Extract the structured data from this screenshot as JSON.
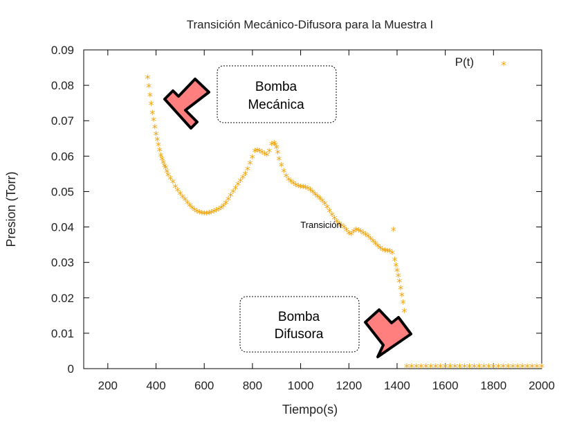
{
  "chart_data": {
    "type": "scatter",
    "title": "Transición Mecánico-Difusora para la Muestra I",
    "xlabel": "Tiempo(s)",
    "ylabel": "Presion (Torr)",
    "xlim": [
      100,
      2000
    ],
    "ylim": [
      0,
      0.09
    ],
    "x_ticks": [
      200,
      400,
      600,
      800,
      1000,
      1200,
      1400,
      1600,
      1800,
      2000
    ],
    "y_ticks": [
      "0",
      "0.01",
      "0.02",
      "0.03",
      "0.04",
      "0.05",
      "0.06",
      "0.07",
      "0.08",
      "0.09"
    ],
    "grid": false,
    "legend": {
      "position": "top-right",
      "entries": [
        {
          "label": "P(t)",
          "marker": "*",
          "color": "#f0a30a"
        }
      ]
    },
    "marker_color": "#f0a30a",
    "series": [
      {
        "name": "P(t)",
        "points": [
          [
            365,
            0.082
          ],
          [
            370,
            0.0795
          ],
          [
            375,
            0.077
          ],
          [
            380,
            0.0745
          ],
          [
            385,
            0.072
          ],
          [
            390,
            0.07
          ],
          [
            395,
            0.068
          ],
          [
            400,
            0.066
          ],
          [
            405,
            0.0645
          ],
          [
            410,
            0.063
          ],
          [
            415,
            0.0615
          ],
          [
            420,
            0.06
          ],
          [
            425,
            0.059
          ],
          [
            430,
            0.058
          ],
          [
            435,
            0.057
          ],
          [
            440,
            0.0565
          ],
          [
            445,
            0.0555
          ],
          [
            450,
            0.0545
          ],
          [
            460,
            0.0535
          ],
          [
            470,
            0.0525
          ],
          [
            480,
            0.0512
          ],
          [
            490,
            0.0502
          ],
          [
            500,
            0.0492
          ],
          [
            510,
            0.0483
          ],
          [
            520,
            0.0475
          ],
          [
            530,
            0.0467
          ],
          [
            540,
            0.0459
          ],
          [
            550,
            0.0452
          ],
          [
            560,
            0.0446
          ],
          [
            570,
            0.0442
          ],
          [
            580,
            0.0439
          ],
          [
            590,
            0.0437
          ],
          [
            600,
            0.0436
          ],
          [
            610,
            0.0436
          ],
          [
            620,
            0.0437
          ],
          [
            630,
            0.0439
          ],
          [
            640,
            0.0442
          ],
          [
            650,
            0.0445
          ],
          [
            660,
            0.0448
          ],
          [
            670,
            0.0452
          ],
          [
            680,
            0.0458
          ],
          [
            690,
            0.0466
          ],
          [
            700,
            0.0476
          ],
          [
            710,
            0.0487
          ],
          [
            720,
            0.0498
          ],
          [
            730,
            0.0508
          ],
          [
            740,
            0.0518
          ],
          [
            750,
            0.0528
          ],
          [
            760,
            0.0538
          ],
          [
            770,
            0.0548
          ],
          [
            780,
            0.0562
          ],
          [
            790,
            0.0578
          ],
          [
            800,
            0.0595
          ],
          [
            810,
            0.0612
          ],
          [
            820,
            0.0614
          ],
          [
            830,
            0.0612
          ],
          [
            840,
            0.0608
          ],
          [
            850,
            0.0605
          ],
          [
            860,
            0.0602
          ],
          [
            870,
            0.0612
          ],
          [
            880,
            0.0632
          ],
          [
            890,
            0.0635
          ],
          [
            895,
            0.063
          ],
          [
            900,
            0.0622
          ],
          [
            905,
            0.0608
          ],
          [
            910,
            0.059
          ],
          [
            920,
            0.0572
          ],
          [
            930,
            0.0556
          ],
          [
            940,
            0.0542
          ],
          [
            950,
            0.0532
          ],
          [
            960,
            0.0526
          ],
          [
            970,
            0.0521
          ],
          [
            980,
            0.0517
          ],
          [
            990,
            0.0514
          ],
          [
            1000,
            0.0512
          ],
          [
            1010,
            0.0511
          ],
          [
            1020,
            0.051
          ],
          [
            1030,
            0.0507
          ],
          [
            1040,
            0.0503
          ],
          [
            1050,
            0.0497
          ],
          [
            1060,
            0.049
          ],
          [
            1070,
            0.0484
          ],
          [
            1080,
            0.0478
          ],
          [
            1090,
            0.0472
          ],
          [
            1100,
            0.0464
          ],
          [
            1110,
            0.0454
          ],
          [
            1120,
            0.0443
          ],
          [
            1130,
            0.0432
          ],
          [
            1140,
            0.0423
          ],
          [
            1150,
            0.0414
          ],
          [
            1160,
            0.0407
          ],
          [
            1170,
            0.0402
          ],
          [
            1180,
            0.0397
          ],
          [
            1190,
            0.0389
          ],
          [
            1200,
            0.0381
          ],
          [
            1210,
            0.0378
          ],
          [
            1220,
            0.0385
          ],
          [
            1230,
            0.039
          ],
          [
            1240,
            0.0388
          ],
          [
            1250,
            0.0385
          ],
          [
            1260,
            0.0381
          ],
          [
            1270,
            0.0377
          ],
          [
            1280,
            0.0372
          ],
          [
            1290,
            0.0365
          ],
          [
            1300,
            0.0358
          ],
          [
            1310,
            0.0351
          ],
          [
            1320,
            0.0344
          ],
          [
            1330,
            0.0338
          ],
          [
            1340,
            0.0334
          ],
          [
            1350,
            0.0332
          ],
          [
            1360,
            0.0331
          ],
          [
            1370,
            0.033
          ],
          [
            1380,
            0.0325
          ],
          [
            1385,
            0.039
          ],
          [
            1390,
            0.0305
          ],
          [
            1395,
            0.029
          ],
          [
            1400,
            0.0275
          ],
          [
            1405,
            0.026
          ],
          [
            1410,
            0.0245
          ],
          [
            1415,
            0.0225
          ],
          [
            1420,
            0.0205
          ],
          [
            1425,
            0.0185
          ],
          [
            1430,
            0.016
          ],
          [
            1440,
            0.0004
          ],
          [
            1460,
            0.0004
          ],
          [
            1480,
            0.0004
          ],
          [
            1500,
            0.0004
          ],
          [
            1520,
            0.0004
          ],
          [
            1540,
            0.0004
          ],
          [
            1560,
            0.0004
          ],
          [
            1580,
            0.0004
          ],
          [
            1600,
            0.0004
          ],
          [
            1620,
            0.0004
          ],
          [
            1640,
            0.0004
          ],
          [
            1660,
            0.0004
          ],
          [
            1680,
            0.0004
          ],
          [
            1700,
            0.0004
          ],
          [
            1720,
            0.0004
          ],
          [
            1740,
            0.0004
          ],
          [
            1760,
            0.0004
          ],
          [
            1780,
            0.0004
          ],
          [
            1800,
            0.0004
          ],
          [
            1820,
            0.0004
          ],
          [
            1840,
            0.0004
          ],
          [
            1860,
            0.0004
          ],
          [
            1880,
            0.0004
          ],
          [
            1900,
            0.0004
          ],
          [
            1920,
            0.0004
          ],
          [
            1940,
            0.0004
          ],
          [
            1960,
            0.0004
          ],
          [
            1980,
            0.0004
          ],
          [
            2000,
            0.0004
          ]
        ]
      }
    ],
    "annotations": [
      {
        "text_lines": [
          "Bomba",
          "Mecánica"
        ]
      },
      {
        "text_lines": [
          "Bomba",
          "Difusora"
        ]
      },
      {
        "text": "Transición"
      }
    ]
  }
}
